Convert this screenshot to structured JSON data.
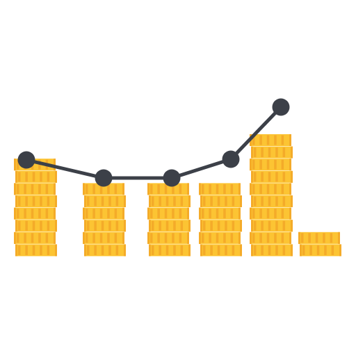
{
  "illustration": {
    "name": "coin-stacks-line-chart-icon",
    "colors": {
      "coin": "#fcc433",
      "coin_shade": "#f4ab29",
      "line": "#3c4048",
      "background": "#ffffff"
    },
    "stacks": [
      {
        "name": "coin-stack-1",
        "coins": 8
      },
      {
        "name": "coin-stack-2",
        "coins": 6
      },
      {
        "name": "coin-stack-3",
        "coins": 6
      },
      {
        "name": "coin-stack-4",
        "coins": 6
      },
      {
        "name": "coin-stack-5",
        "coins": 10
      },
      {
        "name": "coin-stack-6",
        "coins": 2
      }
    ]
  }
}
